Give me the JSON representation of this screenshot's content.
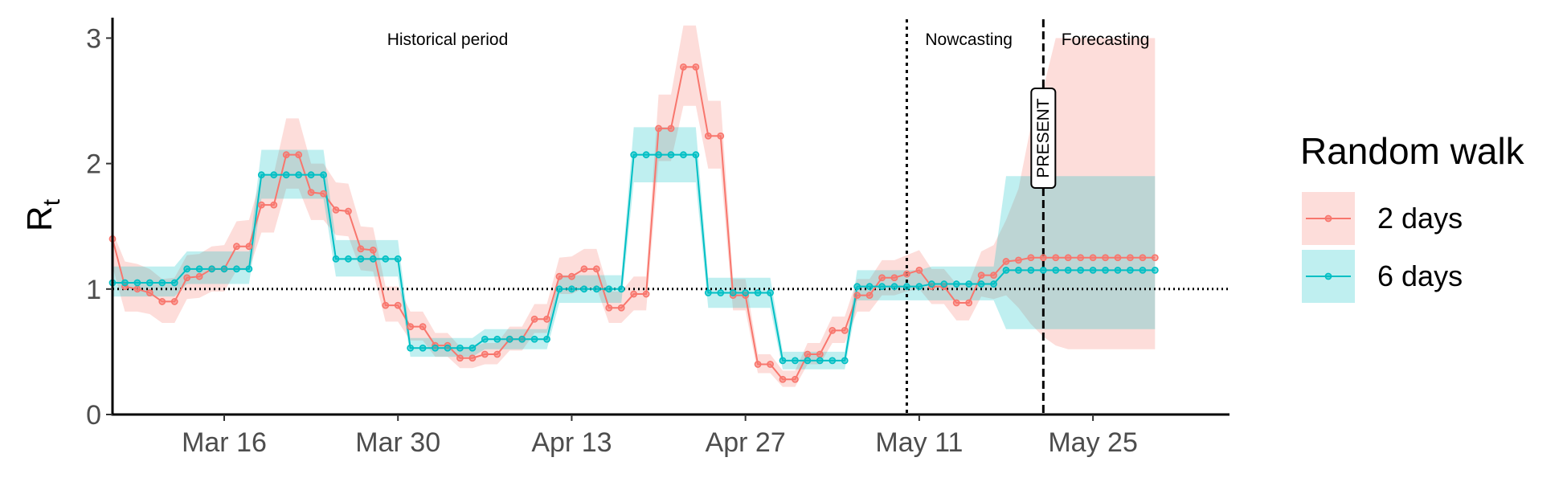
{
  "chart_data": {
    "type": "line",
    "title": "",
    "ylabel": "R",
    "ylabel_sub": "t",
    "xlabel": "",
    "ylim": [
      0,
      3.15
    ],
    "xlim": [
      "2020-03-07",
      "2020-06-05"
    ],
    "x_ticks": [
      {
        "date": "2020-03-16",
        "label": "Mar 16"
      },
      {
        "date": "2020-03-30",
        "label": "Mar 30"
      },
      {
        "date": "2020-04-13",
        "label": "Apr 13"
      },
      {
        "date": "2020-04-27",
        "label": "Apr 27"
      },
      {
        "date": "2020-05-11",
        "label": "May 11"
      },
      {
        "date": "2020-05-25",
        "label": "May 25"
      }
    ],
    "y_ticks": [
      0,
      1,
      2,
      3
    ],
    "grid": false,
    "reference_line_y": 1,
    "period_lines": [
      {
        "date": "2020-05-10",
        "style": "dotted"
      },
      {
        "date": "2020-05-21",
        "style": "dashed",
        "tag": "PRESENT"
      }
    ],
    "period_labels": [
      {
        "text": "Historical period",
        "date": "2020-04-03"
      },
      {
        "text": "Nowcasting",
        "date": "2020-05-15"
      },
      {
        "text": "Forecasting",
        "date": "2020-05-26"
      }
    ],
    "legend": {
      "title": "Random walk",
      "position": "right"
    },
    "series": [
      {
        "name": "2 days",
        "color": "#F8766D",
        "band_color": "#F8766D",
        "points": [
          [
            "2020-03-07",
            1.4,
            1.18,
            1.46
          ],
          [
            "2020-03-08",
            1.02,
            0.82,
            1.22
          ],
          [
            "2020-03-09",
            1.0,
            0.82,
            1.2
          ],
          [
            "2020-03-10",
            0.97,
            0.8,
            1.16
          ],
          [
            "2020-03-11",
            0.9,
            0.73,
            1.08
          ],
          [
            "2020-03-12",
            0.9,
            0.73,
            1.09
          ],
          [
            "2020-03-13",
            1.09,
            0.92,
            1.27
          ],
          [
            "2020-03-14",
            1.1,
            0.93,
            1.28
          ],
          [
            "2020-03-15",
            1.16,
            0.98,
            1.34
          ],
          [
            "2020-03-16",
            1.16,
            0.98,
            1.35
          ],
          [
            "2020-03-17",
            1.34,
            1.15,
            1.54
          ],
          [
            "2020-03-18",
            1.34,
            1.15,
            1.55
          ],
          [
            "2020-03-19",
            1.67,
            1.45,
            1.9
          ],
          [
            "2020-03-20",
            1.67,
            1.45,
            1.92
          ],
          [
            "2020-03-21",
            2.07,
            1.8,
            2.36
          ],
          [
            "2020-03-22",
            2.07,
            1.8,
            2.36
          ],
          [
            "2020-03-23",
            1.77,
            1.55,
            2.0
          ],
          [
            "2020-03-24",
            1.76,
            1.55,
            2.0
          ],
          [
            "2020-03-25",
            1.63,
            1.43,
            1.85
          ],
          [
            "2020-03-26",
            1.62,
            1.42,
            1.84
          ],
          [
            "2020-03-27",
            1.32,
            1.15,
            1.5
          ],
          [
            "2020-03-28",
            1.31,
            1.14,
            1.49
          ],
          [
            "2020-03-29",
            0.87,
            0.74,
            1.02
          ],
          [
            "2020-03-30",
            0.87,
            0.74,
            1.02
          ],
          [
            "2020-03-31",
            0.7,
            0.59,
            0.82
          ],
          [
            "2020-04-01",
            0.7,
            0.59,
            0.82
          ],
          [
            "2020-04-02",
            0.55,
            0.46,
            0.65
          ],
          [
            "2020-04-03",
            0.55,
            0.46,
            0.65
          ],
          [
            "2020-04-04",
            0.45,
            0.37,
            0.54
          ],
          [
            "2020-04-05",
            0.45,
            0.37,
            0.54
          ],
          [
            "2020-04-06",
            0.48,
            0.4,
            0.57
          ],
          [
            "2020-04-07",
            0.48,
            0.4,
            0.57
          ],
          [
            "2020-04-08",
            0.6,
            0.51,
            0.7
          ],
          [
            "2020-04-09",
            0.6,
            0.51,
            0.7
          ],
          [
            "2020-04-10",
            0.76,
            0.65,
            0.88
          ],
          [
            "2020-04-11",
            0.76,
            0.65,
            0.88
          ],
          [
            "2020-04-12",
            1.1,
            0.96,
            1.25
          ],
          [
            "2020-04-13",
            1.1,
            0.96,
            1.26
          ],
          [
            "2020-04-14",
            1.16,
            1.01,
            1.32
          ],
          [
            "2020-04-15",
            1.16,
            1.01,
            1.32
          ],
          [
            "2020-04-16",
            0.85,
            0.73,
            0.98
          ],
          [
            "2020-04-17",
            0.85,
            0.73,
            0.98
          ],
          [
            "2020-04-18",
            0.96,
            0.83,
            1.1
          ],
          [
            "2020-04-19",
            0.96,
            0.83,
            1.1
          ],
          [
            "2020-04-20",
            2.28,
            2.02,
            2.55
          ],
          [
            "2020-04-21",
            2.28,
            2.02,
            2.55
          ],
          [
            "2020-04-22",
            2.77,
            2.46,
            3.1
          ],
          [
            "2020-04-23",
            2.77,
            2.46,
            3.1
          ],
          [
            "2020-04-24",
            2.22,
            1.96,
            2.5
          ],
          [
            "2020-04-25",
            2.22,
            1.96,
            2.5
          ],
          [
            "2020-04-26",
            0.95,
            0.83,
            1.08
          ],
          [
            "2020-04-27",
            0.95,
            0.83,
            1.08
          ],
          [
            "2020-04-28",
            0.4,
            0.33,
            0.48
          ],
          [
            "2020-04-29",
            0.4,
            0.33,
            0.48
          ],
          [
            "2020-04-30",
            0.28,
            0.22,
            0.35
          ],
          [
            "2020-05-01",
            0.28,
            0.22,
            0.35
          ],
          [
            "2020-05-02",
            0.48,
            0.4,
            0.57
          ],
          [
            "2020-05-03",
            0.48,
            0.4,
            0.57
          ],
          [
            "2020-05-04",
            0.67,
            0.57,
            0.78
          ],
          [
            "2020-05-05",
            0.67,
            0.57,
            0.78
          ],
          [
            "2020-05-06",
            0.95,
            0.82,
            1.08
          ],
          [
            "2020-05-07",
            0.95,
            0.82,
            1.08
          ],
          [
            "2020-05-08",
            1.09,
            0.95,
            1.23
          ],
          [
            "2020-05-09",
            1.09,
            0.95,
            1.23
          ],
          [
            "2020-05-10",
            1.12,
            0.98,
            1.27
          ],
          [
            "2020-05-11",
            1.15,
            1.0,
            1.31
          ],
          [
            "2020-05-12",
            1.02,
            0.88,
            1.16
          ],
          [
            "2020-05-13",
            1.02,
            0.88,
            1.16
          ],
          [
            "2020-05-14",
            0.89,
            0.75,
            1.04
          ],
          [
            "2020-05-15",
            0.89,
            0.75,
            1.05
          ],
          [
            "2020-05-16",
            1.11,
            0.94,
            1.3
          ],
          [
            "2020-05-17",
            1.11,
            0.92,
            1.35
          ],
          [
            "2020-05-18",
            1.22,
            0.95,
            1.55
          ],
          [
            "2020-05-19",
            1.23,
            0.85,
            1.8
          ],
          [
            "2020-05-20",
            1.25,
            0.72,
            2.3
          ],
          [
            "2020-05-21",
            1.25,
            0.62,
            2.6
          ],
          [
            "2020-05-22",
            1.25,
            0.55,
            3.0
          ],
          [
            "2020-05-23",
            1.25,
            0.52,
            3.0
          ],
          [
            "2020-05-24",
            1.25,
            0.52,
            3.0
          ],
          [
            "2020-05-25",
            1.25,
            0.52,
            3.0
          ],
          [
            "2020-05-26",
            1.25,
            0.52,
            3.0
          ],
          [
            "2020-05-27",
            1.25,
            0.52,
            3.0
          ],
          [
            "2020-05-28",
            1.25,
            0.52,
            3.0
          ],
          [
            "2020-05-29",
            1.25,
            0.52,
            3.0
          ],
          [
            "2020-05-30",
            1.25,
            0.52,
            3.0
          ]
        ]
      },
      {
        "name": "6 days",
        "color": "#00BFC4",
        "band_color": "#00BFC4",
        "points": [
          [
            "2020-03-07",
            1.05,
            0.94,
            1.18
          ],
          [
            "2020-03-08",
            1.05,
            0.94,
            1.18
          ],
          [
            "2020-03-09",
            1.05,
            0.94,
            1.18
          ],
          [
            "2020-03-10",
            1.05,
            0.94,
            1.18
          ],
          [
            "2020-03-11",
            1.05,
            0.94,
            1.18
          ],
          [
            "2020-03-12",
            1.05,
            0.94,
            1.18
          ],
          [
            "2020-03-13",
            1.16,
            1.04,
            1.3
          ],
          [
            "2020-03-14",
            1.16,
            1.04,
            1.3
          ],
          [
            "2020-03-15",
            1.16,
            1.04,
            1.3
          ],
          [
            "2020-03-16",
            1.16,
            1.04,
            1.3
          ],
          [
            "2020-03-17",
            1.16,
            1.04,
            1.3
          ],
          [
            "2020-03-18",
            1.16,
            1.04,
            1.3
          ],
          [
            "2020-03-19",
            1.91,
            1.72,
            2.11
          ],
          [
            "2020-03-20",
            1.91,
            1.72,
            2.11
          ],
          [
            "2020-03-21",
            1.91,
            1.72,
            2.11
          ],
          [
            "2020-03-22",
            1.91,
            1.72,
            2.11
          ],
          [
            "2020-03-23",
            1.91,
            1.72,
            2.11
          ],
          [
            "2020-03-24",
            1.91,
            1.72,
            2.11
          ],
          [
            "2020-03-25",
            1.24,
            1.1,
            1.39
          ],
          [
            "2020-03-26",
            1.24,
            1.1,
            1.39
          ],
          [
            "2020-03-27",
            1.24,
            1.1,
            1.39
          ],
          [
            "2020-03-28",
            1.24,
            1.1,
            1.39
          ],
          [
            "2020-03-29",
            1.24,
            1.1,
            1.39
          ],
          [
            "2020-03-30",
            1.24,
            1.1,
            1.39
          ],
          [
            "2020-03-31",
            0.53,
            0.46,
            0.61
          ],
          [
            "2020-04-01",
            0.53,
            0.46,
            0.61
          ],
          [
            "2020-04-02",
            0.53,
            0.46,
            0.61
          ],
          [
            "2020-04-03",
            0.53,
            0.46,
            0.61
          ],
          [
            "2020-04-04",
            0.53,
            0.46,
            0.61
          ],
          [
            "2020-04-05",
            0.53,
            0.46,
            0.61
          ],
          [
            "2020-04-06",
            0.6,
            0.52,
            0.68
          ],
          [
            "2020-04-07",
            0.6,
            0.52,
            0.68
          ],
          [
            "2020-04-08",
            0.6,
            0.52,
            0.68
          ],
          [
            "2020-04-09",
            0.6,
            0.52,
            0.68
          ],
          [
            "2020-04-10",
            0.6,
            0.52,
            0.68
          ],
          [
            "2020-04-11",
            0.6,
            0.52,
            0.68
          ],
          [
            "2020-04-12",
            1.0,
            0.89,
            1.11
          ],
          [
            "2020-04-13",
            1.0,
            0.89,
            1.11
          ],
          [
            "2020-04-14",
            1.0,
            0.89,
            1.11
          ],
          [
            "2020-04-15",
            1.0,
            0.89,
            1.11
          ],
          [
            "2020-04-16",
            1.0,
            0.89,
            1.11
          ],
          [
            "2020-04-17",
            1.0,
            0.89,
            1.11
          ],
          [
            "2020-04-18",
            2.07,
            1.85,
            2.29
          ],
          [
            "2020-04-19",
            2.07,
            1.85,
            2.29
          ],
          [
            "2020-04-20",
            2.07,
            1.85,
            2.29
          ],
          [
            "2020-04-21",
            2.07,
            1.85,
            2.29
          ],
          [
            "2020-04-22",
            2.07,
            1.85,
            2.29
          ],
          [
            "2020-04-23",
            2.07,
            1.85,
            2.29
          ],
          [
            "2020-04-24",
            0.97,
            0.85,
            1.09
          ],
          [
            "2020-04-25",
            0.97,
            0.85,
            1.09
          ],
          [
            "2020-04-26",
            0.97,
            0.85,
            1.09
          ],
          [
            "2020-04-27",
            0.97,
            0.85,
            1.09
          ],
          [
            "2020-04-28",
            0.97,
            0.85,
            1.09
          ],
          [
            "2020-04-29",
            0.97,
            0.85,
            1.09
          ],
          [
            "2020-04-30",
            0.43,
            0.36,
            0.5
          ],
          [
            "2020-05-01",
            0.43,
            0.36,
            0.5
          ],
          [
            "2020-05-02",
            0.43,
            0.36,
            0.5
          ],
          [
            "2020-05-03",
            0.43,
            0.36,
            0.5
          ],
          [
            "2020-05-04",
            0.43,
            0.36,
            0.5
          ],
          [
            "2020-05-05",
            0.43,
            0.36,
            0.5
          ],
          [
            "2020-05-06",
            1.02,
            0.91,
            1.15
          ],
          [
            "2020-05-07",
            1.02,
            0.91,
            1.15
          ],
          [
            "2020-05-08",
            1.02,
            0.91,
            1.15
          ],
          [
            "2020-05-09",
            1.02,
            0.91,
            1.15
          ],
          [
            "2020-05-10",
            1.02,
            0.91,
            1.15
          ],
          [
            "2020-05-11",
            1.02,
            0.91,
            1.15
          ],
          [
            "2020-05-12",
            1.04,
            0.91,
            1.18
          ],
          [
            "2020-05-13",
            1.04,
            0.91,
            1.18
          ],
          [
            "2020-05-14",
            1.04,
            0.91,
            1.18
          ],
          [
            "2020-05-15",
            1.04,
            0.91,
            1.18
          ],
          [
            "2020-05-16",
            1.04,
            0.91,
            1.18
          ],
          [
            "2020-05-17",
            1.04,
            0.91,
            1.18
          ],
          [
            "2020-05-18",
            1.15,
            0.68,
            1.9
          ],
          [
            "2020-05-19",
            1.15,
            0.68,
            1.9
          ],
          [
            "2020-05-20",
            1.15,
            0.68,
            1.9
          ],
          [
            "2020-05-21",
            1.15,
            0.68,
            1.9
          ],
          [
            "2020-05-22",
            1.15,
            0.68,
            1.9
          ],
          [
            "2020-05-23",
            1.15,
            0.68,
            1.9
          ],
          [
            "2020-05-24",
            1.15,
            0.68,
            1.9
          ],
          [
            "2020-05-25",
            1.15,
            0.68,
            1.9
          ],
          [
            "2020-05-26",
            1.15,
            0.68,
            1.9
          ],
          [
            "2020-05-27",
            1.15,
            0.68,
            1.9
          ],
          [
            "2020-05-28",
            1.15,
            0.68,
            1.9
          ],
          [
            "2020-05-29",
            1.15,
            0.68,
            1.9
          ],
          [
            "2020-05-30",
            1.15,
            0.68,
            1.9
          ]
        ]
      }
    ]
  }
}
